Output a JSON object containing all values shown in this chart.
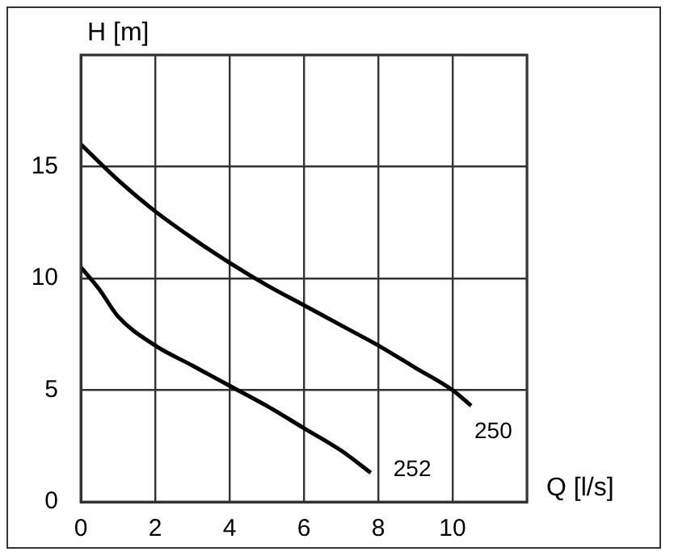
{
  "chart_data": {
    "type": "line",
    "xlabel": "Q [l/s]",
    "ylabel": "H [m]",
    "xlim": [
      0,
      12
    ],
    "xticks": [
      0,
      2,
      4,
      6,
      8,
      10,
      {
        "value": 12,
        "label": null
      }
    ],
    "ylim": [
      0,
      20
    ],
    "yticks": [
      0,
      5,
      10,
      15,
      {
        "value": 20,
        "label": null
      }
    ],
    "grid": true,
    "legend": false,
    "marker": "none",
    "line_style": "solid",
    "series": [
      {
        "name": "250",
        "color": "#000000",
        "x": [
          0,
          1,
          2,
          3,
          4,
          5,
          6,
          7,
          8,
          9,
          10,
          10.5
        ],
        "values": [
          16,
          14.4,
          13,
          11.8,
          10.7,
          9.7,
          8.8,
          7.9,
          7,
          6,
          5,
          4.3
        ]
      },
      {
        "name": "252",
        "color": "#000000",
        "x": [
          0,
          0.5,
          1,
          2,
          3,
          4,
          5,
          6,
          7,
          7.8
        ],
        "values": [
          10.5,
          9.5,
          8.3,
          7,
          6.1,
          5.2,
          4.3,
          3.3,
          2.3,
          1.3
        ]
      }
    ]
  }
}
